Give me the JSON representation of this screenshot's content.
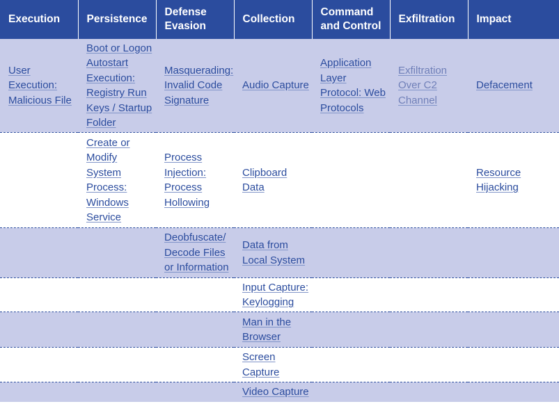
{
  "headers": [
    "Execution",
    "Persistence",
    "Defense Evasion",
    "Collection",
    "Command and Control",
    "Exfiltration",
    "Impact"
  ],
  "rows": [
    {
      "execution": "User Execution: Malicious File",
      "persistence": "Boot or Logon Autostart Execution: Registry Run Keys / Startup Folder",
      "defense_evasion": "Masquerading: Invalid Code Signature",
      "collection": "Audio Capture",
      "command_and_control": "Application Layer Protocol: Web Protocols",
      "exfiltration": "Exfiltration Over C2 Channel",
      "impact": "Defacement"
    },
    {
      "execution": "",
      "persistence": "Create or Modify System Process: Windows Service",
      "defense_evasion": "Process Injection: Process Hollowing",
      "collection": "Clipboard Data",
      "command_and_control": "",
      "exfiltration": "",
      "impact": "Resource Hijacking"
    },
    {
      "execution": "",
      "persistence": "",
      "defense_evasion": "Deobfuscate/ Decode Files or Information",
      "collection": "Data from Local System",
      "command_and_control": "",
      "exfiltration": "",
      "impact": ""
    },
    {
      "execution": "",
      "persistence": "",
      "defense_evasion": "",
      "collection": "Input Capture: Keylogging",
      "command_and_control": "",
      "exfiltration": "",
      "impact": ""
    },
    {
      "execution": "",
      "persistence": "",
      "defense_evasion": "",
      "collection": "Man in the Browser",
      "command_and_control": "",
      "exfiltration": "",
      "impact": ""
    },
    {
      "execution": "",
      "persistence": "",
      "defense_evasion": "",
      "collection": "Screen Capture",
      "command_and_control": "",
      "exfiltration": "",
      "impact": ""
    },
    {
      "execution": "",
      "persistence": "",
      "defense_evasion": "",
      "collection": "Video Capture",
      "command_and_control": "",
      "exfiltration": "",
      "impact": ""
    }
  ],
  "colors": {
    "header_bg": "#2b4c9e",
    "row_shade": "#c8cce9",
    "link": "#2b4c9e"
  }
}
